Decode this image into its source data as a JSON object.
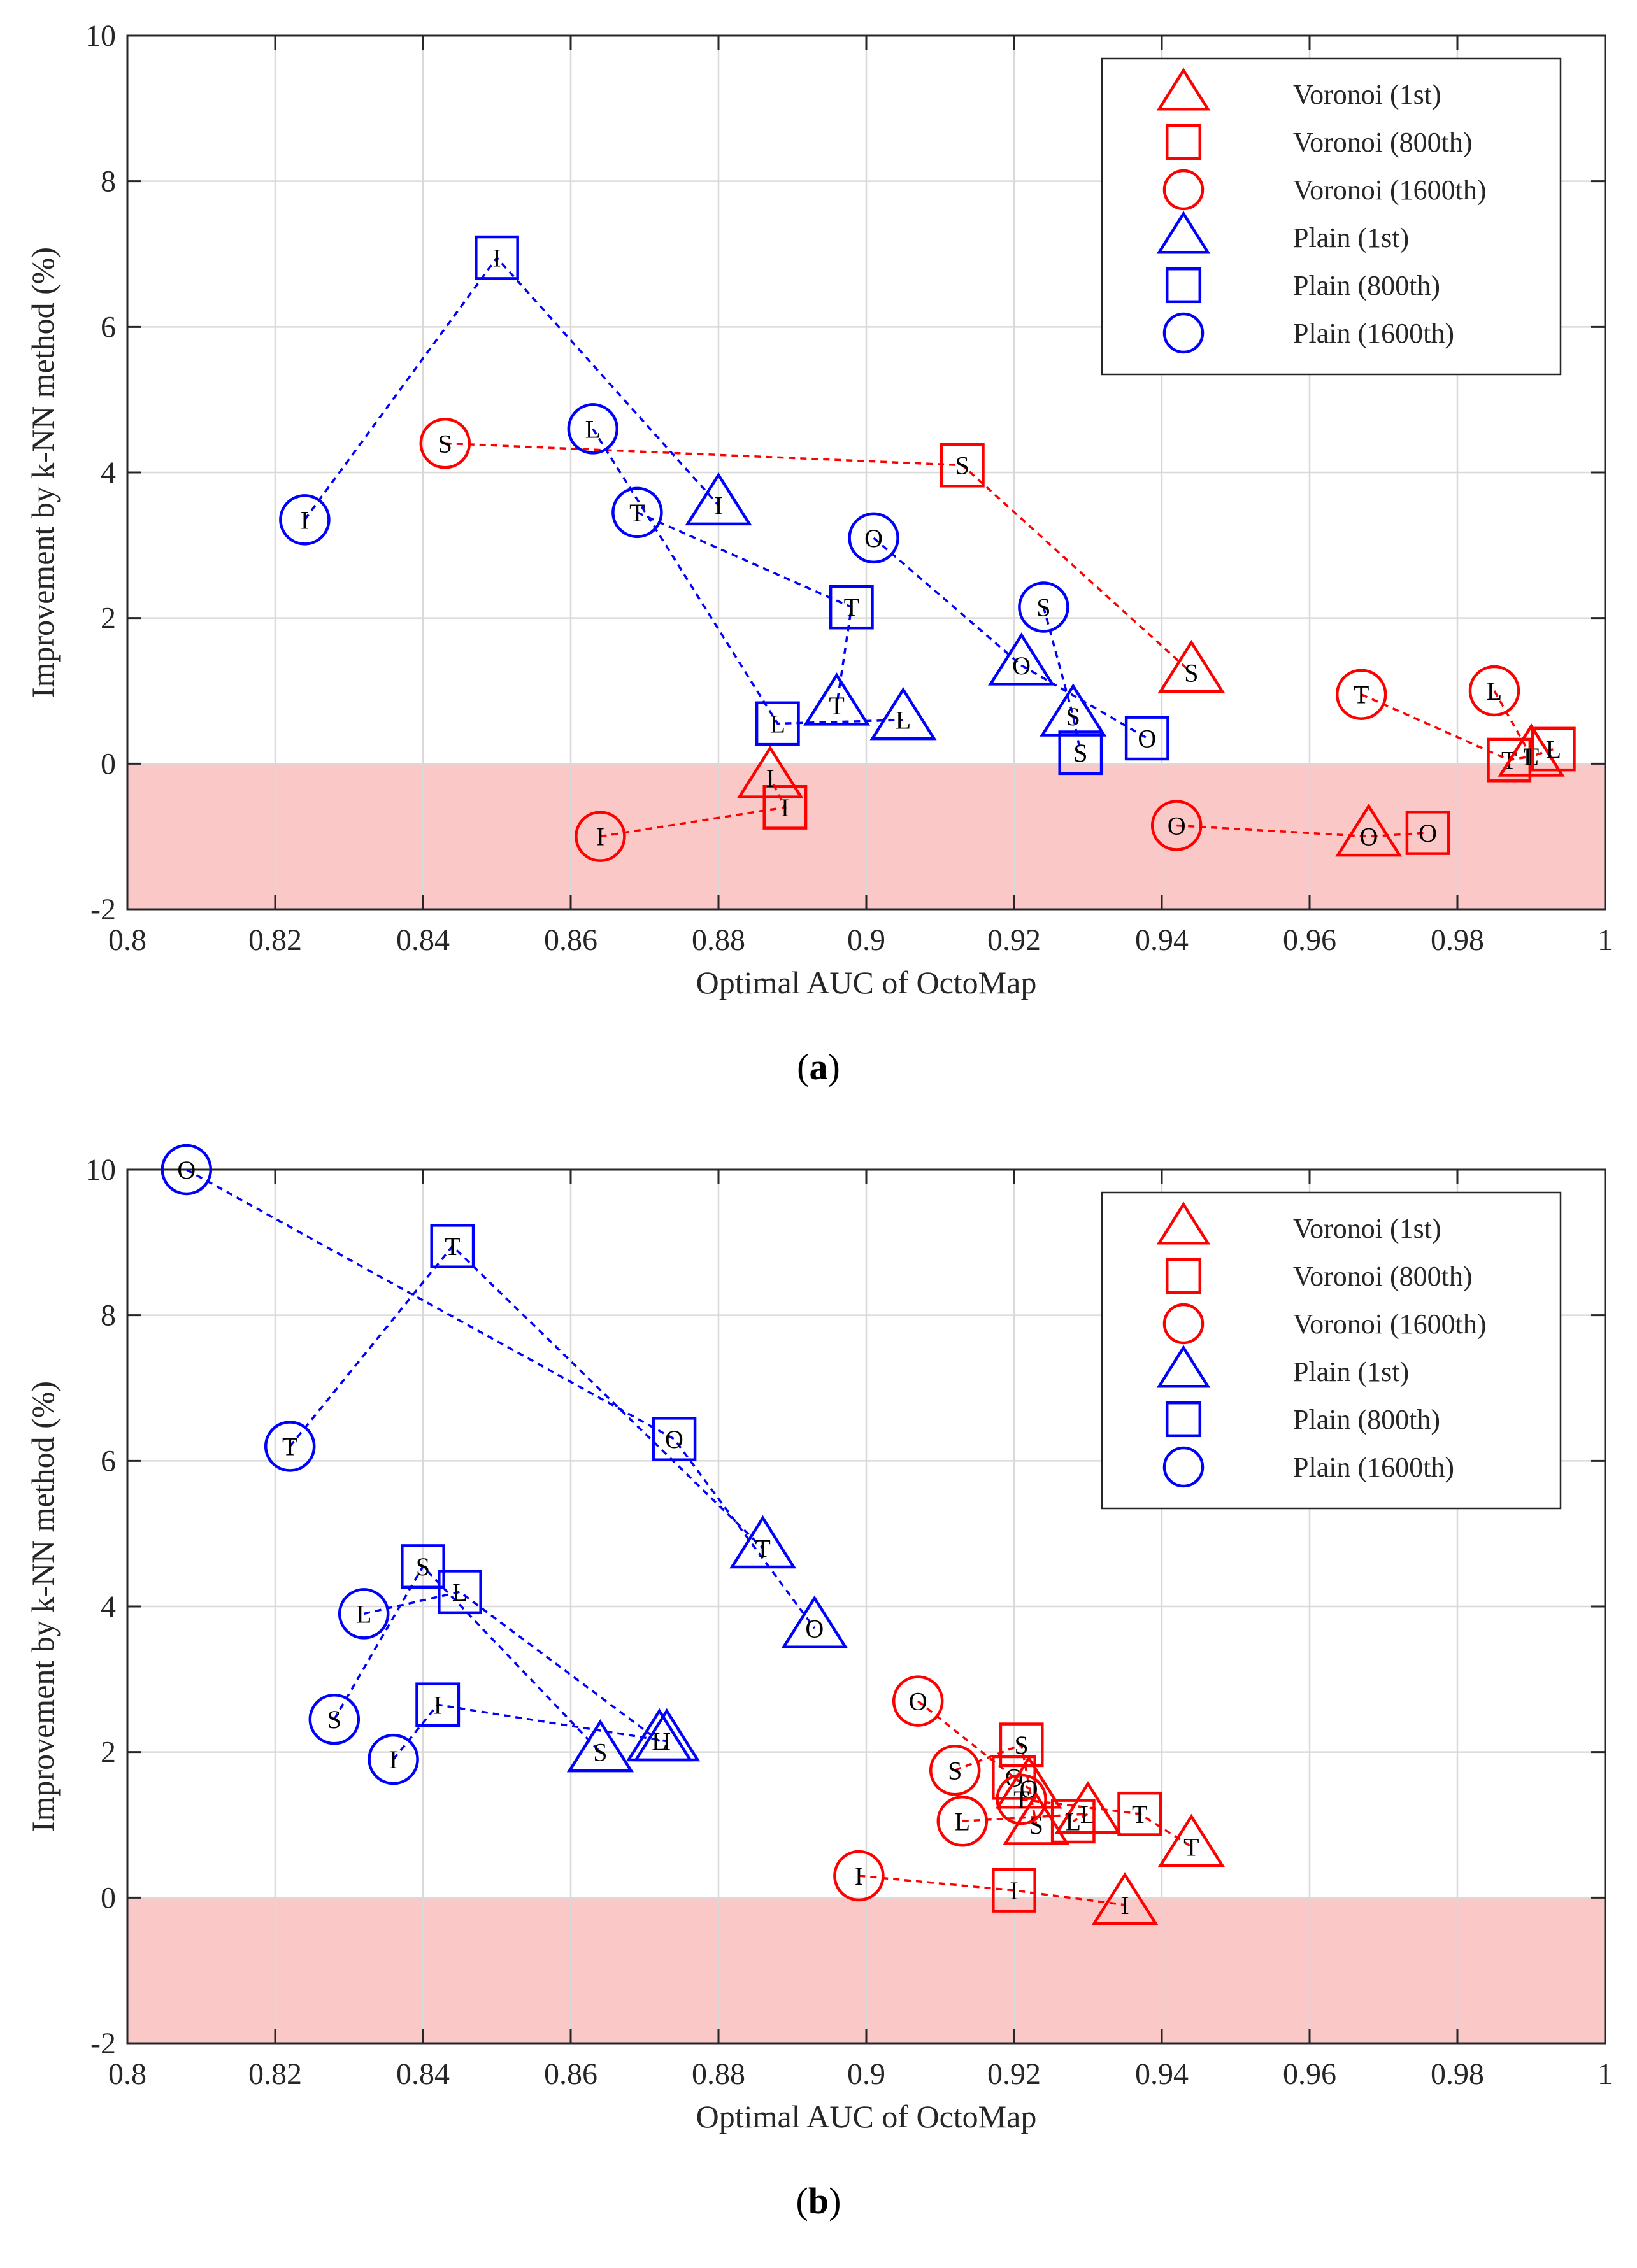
{
  "chart_data": [
    {
      "type": "scatter",
      "caption_label": "(",
      "caption_letter": "a",
      "caption_close": ")",
      "xlabel": "Optimal AUC of OctoMap",
      "ylabel": "Improvement by k-NN method (%)",
      "xlim": [
        0.8,
        1.0
      ],
      "ylim": [
        -2,
        10
      ],
      "xticks": [
        "0.8",
        "0.82",
        "0.84",
        "0.86",
        "0.88",
        "0.9",
        "0.92",
        "0.94",
        "0.96",
        "0.98",
        "1"
      ],
      "yticks": [
        "-2",
        "0",
        "2",
        "4",
        "6",
        "8",
        "10"
      ],
      "grid": true,
      "negative_region_color": "#fbc8c8",
      "legend_position": "top-right",
      "legend": [
        {
          "label": "Voronoi (1st)",
          "marker": "triangle",
          "color": "#ff0000"
        },
        {
          "label": "Voronoi (800th)",
          "marker": "square",
          "color": "#ff0000"
        },
        {
          "label": "Voronoi (1600th)",
          "marker": "circle",
          "color": "#ff0000"
        },
        {
          "label": "Plain (1st)",
          "marker": "triangle",
          "color": "#0000ff"
        },
        {
          "label": "Plain (800th)",
          "marker": "square",
          "color": "#0000ff"
        },
        {
          "label": "Plain (1600th)",
          "marker": "circle",
          "color": "#0000ff"
        }
      ],
      "series": [
        {
          "group": "Voronoi",
          "letter": "S",
          "color": "#ff0000",
          "points": [
            {
              "marker": "circle",
              "x": 0.843,
              "y": 4.4
            },
            {
              "marker": "square",
              "x": 0.913,
              "y": 4.1
            },
            {
              "marker": "triangle",
              "x": 0.944,
              "y": 1.25
            }
          ]
        },
        {
          "group": "Voronoi",
          "letter": "I",
          "color": "#ff0000",
          "points": [
            {
              "marker": "circle",
              "x": 0.864,
              "y": -1.0
            },
            {
              "marker": "square",
              "x": 0.889,
              "y": -0.6
            },
            {
              "marker": "triangle",
              "x": 0.887,
              "y": -0.2
            }
          ]
        },
        {
          "group": "Voronoi",
          "letter": "O",
          "color": "#ff0000",
          "points": [
            {
              "marker": "circle",
              "x": 0.942,
              "y": -0.85
            },
            {
              "marker": "triangle",
              "x": 0.968,
              "y": -1.0
            },
            {
              "marker": "square",
              "x": 0.976,
              "y": -0.95
            }
          ]
        },
        {
          "group": "Voronoi",
          "letter": "T",
          "color": "#ff0000",
          "points": [
            {
              "marker": "circle",
              "x": 0.967,
              "y": 0.95
            },
            {
              "marker": "square",
              "x": 0.987,
              "y": 0.05
            },
            {
              "marker": "triangle",
              "x": 0.99,
              "y": 0.1
            }
          ]
        },
        {
          "group": "Voronoi",
          "letter": "L",
          "color": "#ff0000",
          "points": [
            {
              "marker": "circle",
              "x": 0.985,
              "y": 1.0
            },
            {
              "marker": "triangle",
              "x": 0.99,
              "y": 0.1
            },
            {
              "marker": "square",
              "x": 0.993,
              "y": 0.2
            }
          ]
        },
        {
          "group": "Plain",
          "letter": "I",
          "color": "#0000ff",
          "points": [
            {
              "marker": "circle",
              "x": 0.824,
              "y": 3.35
            },
            {
              "marker": "square",
              "x": 0.85,
              "y": 6.95
            },
            {
              "marker": "triangle",
              "x": 0.88,
              "y": 3.55
            }
          ]
        },
        {
          "group": "Plain",
          "letter": "L",
          "color": "#0000ff",
          "points": [
            {
              "marker": "circle",
              "x": 0.863,
              "y": 4.6
            },
            {
              "marker": "square",
              "x": 0.888,
              "y": 0.55
            },
            {
              "marker": "triangle",
              "x": 0.905,
              "y": 0.6
            }
          ]
        },
        {
          "group": "Plain",
          "letter": "T",
          "color": "#0000ff",
          "points": [
            {
              "marker": "circle",
              "x": 0.869,
              "y": 3.45
            },
            {
              "marker": "square",
              "x": 0.898,
              "y": 2.15
            },
            {
              "marker": "triangle",
              "x": 0.896,
              "y": 0.8
            }
          ]
        },
        {
          "group": "Plain",
          "letter": "O",
          "color": "#0000ff",
          "points": [
            {
              "marker": "circle",
              "x": 0.901,
              "y": 3.1
            },
            {
              "marker": "triangle",
              "x": 0.921,
              "y": 1.35
            },
            {
              "marker": "square",
              "x": 0.938,
              "y": 0.35
            }
          ]
        },
        {
          "group": "Plain",
          "letter": "S",
          "color": "#0000ff",
          "points": [
            {
              "marker": "circle",
              "x": 0.924,
              "y": 2.15
            },
            {
              "marker": "triangle",
              "x": 0.928,
              "y": 0.65
            },
            {
              "marker": "square",
              "x": 0.929,
              "y": 0.15
            }
          ]
        }
      ]
    },
    {
      "type": "scatter",
      "caption_label": "(",
      "caption_letter": "b",
      "caption_close": ")",
      "xlabel": "Optimal AUC of OctoMap",
      "ylabel": "Improvement by k-NN method (%)",
      "xlim": [
        0.8,
        1.0
      ],
      "ylim": [
        -2,
        10
      ],
      "xticks": [
        "0.8",
        "0.82",
        "0.84",
        "0.86",
        "0.88",
        "0.9",
        "0.92",
        "0.94",
        "0.96",
        "0.98",
        "1"
      ],
      "yticks": [
        "-2",
        "0",
        "2",
        "4",
        "6",
        "8",
        "10"
      ],
      "grid": true,
      "negative_region_color": "#fbc8c8",
      "legend_position": "top-right",
      "legend": [
        {
          "label": "Voronoi (1st)",
          "marker": "triangle",
          "color": "#ff0000"
        },
        {
          "label": "Voronoi (800th)",
          "marker": "square",
          "color": "#ff0000"
        },
        {
          "label": "Voronoi (1600th)",
          "marker": "circle",
          "color": "#ff0000"
        },
        {
          "label": "Plain (1st)",
          "marker": "triangle",
          "color": "#0000ff"
        },
        {
          "label": "Plain (800th)",
          "marker": "square",
          "color": "#0000ff"
        },
        {
          "label": "Plain (1600th)",
          "marker": "circle",
          "color": "#0000ff"
        }
      ],
      "series": [
        {
          "group": "Plain",
          "letter": "O",
          "color": "#0000ff",
          "points": [
            {
              "marker": "circle",
              "x": 0.808,
              "y": 10.0
            },
            {
              "marker": "square",
              "x": 0.874,
              "y": 6.3
            },
            {
              "marker": "triangle",
              "x": 0.893,
              "y": 3.7
            }
          ]
        },
        {
          "group": "Plain",
          "letter": "T",
          "color": "#0000ff",
          "points": [
            {
              "marker": "circle",
              "x": 0.822,
              "y": 6.2
            },
            {
              "marker": "square",
              "x": 0.844,
              "y": 8.95
            },
            {
              "marker": "triangle",
              "x": 0.886,
              "y": 4.8
            }
          ]
        },
        {
          "group": "Plain",
          "letter": "S",
          "color": "#0000ff",
          "points": [
            {
              "marker": "circle",
              "x": 0.828,
              "y": 2.45
            },
            {
              "marker": "square",
              "x": 0.84,
              "y": 4.55
            },
            {
              "marker": "triangle",
              "x": 0.864,
              "y": 2.0
            }
          ]
        },
        {
          "group": "Plain",
          "letter": "L",
          "color": "#0000ff",
          "points": [
            {
              "marker": "circle",
              "x": 0.832,
              "y": 3.9
            },
            {
              "marker": "square",
              "x": 0.845,
              "y": 4.2
            },
            {
              "marker": "triangle",
              "x": 0.872,
              "y": 2.15
            }
          ]
        },
        {
          "group": "Plain",
          "letter": "I",
          "color": "#0000ff",
          "points": [
            {
              "marker": "circle",
              "x": 0.836,
              "y": 1.9
            },
            {
              "marker": "square",
              "x": 0.842,
              "y": 2.65
            },
            {
              "marker": "triangle",
              "x": 0.873,
              "y": 2.15
            }
          ]
        },
        {
          "group": "Voronoi",
          "letter": "O",
          "color": "#ff0000",
          "points": [
            {
              "marker": "circle",
              "x": 0.907,
              "y": 2.7
            },
            {
              "marker": "square",
              "x": 0.92,
              "y": 1.65
            },
            {
              "marker": "triangle",
              "x": 0.922,
              "y": 1.5
            }
          ]
        },
        {
          "group": "Voronoi",
          "letter": "S",
          "color": "#ff0000",
          "points": [
            {
              "marker": "circle",
              "x": 0.912,
              "y": 1.75
            },
            {
              "marker": "square",
              "x": 0.921,
              "y": 2.1
            },
            {
              "marker": "triangle",
              "x": 0.923,
              "y": 1.0
            }
          ]
        },
        {
          "group": "Voronoi",
          "letter": "T",
          "color": "#ff0000",
          "points": [
            {
              "marker": "circle",
              "x": 0.921,
              "y": 1.35
            },
            {
              "marker": "square",
              "x": 0.937,
              "y": 1.15
            },
            {
              "marker": "triangle",
              "x": 0.944,
              "y": 0.7
            }
          ]
        },
        {
          "group": "Voronoi",
          "letter": "L",
          "color": "#ff0000",
          "points": [
            {
              "marker": "circle",
              "x": 0.913,
              "y": 1.05
            },
            {
              "marker": "triangle",
              "x": 0.93,
              "y": 1.15
            },
            {
              "marker": "square",
              "x": 0.928,
              "y": 1.05
            }
          ]
        },
        {
          "group": "Voronoi",
          "letter": "I",
          "color": "#ff0000",
          "points": [
            {
              "marker": "circle",
              "x": 0.899,
              "y": 0.3
            },
            {
              "marker": "square",
              "x": 0.92,
              "y": 0.1
            },
            {
              "marker": "triangle",
              "x": 0.935,
              "y": -0.1
            }
          ]
        }
      ]
    }
  ]
}
